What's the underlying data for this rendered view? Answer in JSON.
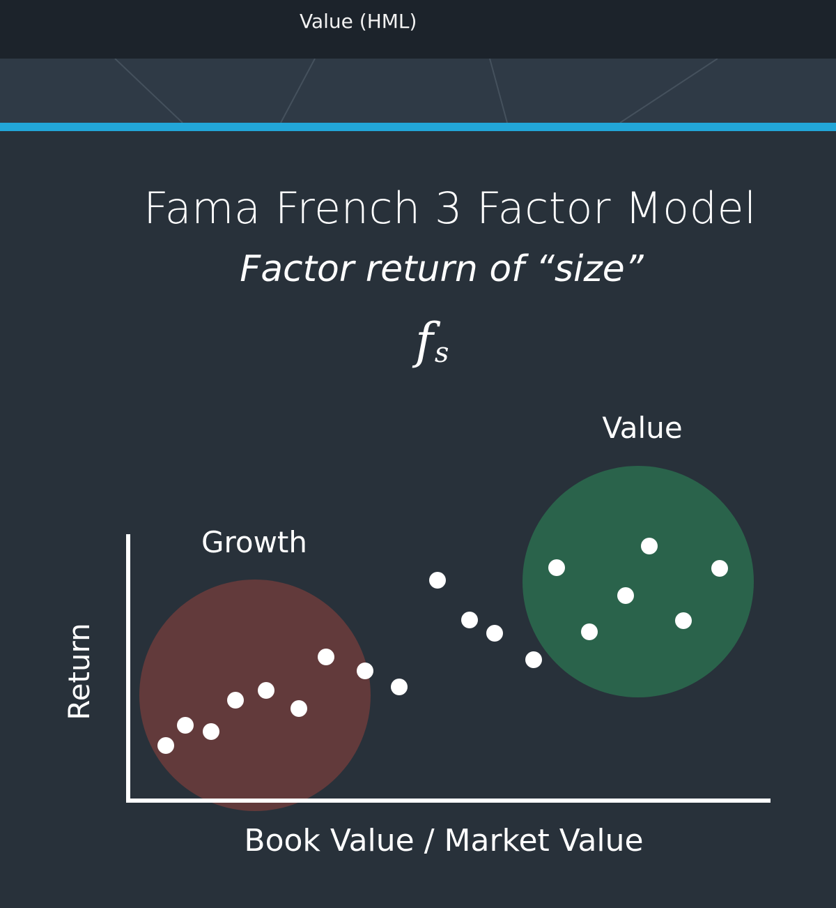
{
  "header": {
    "title": "Value (HML)"
  },
  "slide": {
    "title": "Fama French 3 Factor Model",
    "subtitle": "Factor return of “size”",
    "formula_base": "f",
    "formula_sub": "s"
  },
  "chart_data": {
    "type": "scatter",
    "xlabel": "Book Value / Market Value",
    "ylabel": "Return",
    "groups": [
      {
        "label": "Growth",
        "color": "#623a3b"
      },
      {
        "label": "Value",
        "color": "#2a634b"
      }
    ],
    "points_color": "#ffffff",
    "axis_color": "#ffffff"
  }
}
